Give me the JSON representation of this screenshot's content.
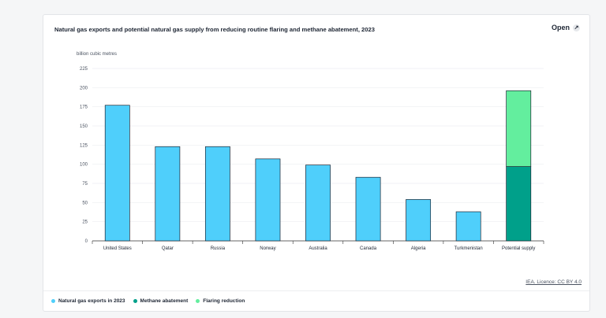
{
  "header": {
    "title": "Natural gas exports and potential natural gas supply from reducing routine flaring and methane abatement, 2023",
    "open_label": "Open",
    "open_icon": "expand-icon"
  },
  "footer": {
    "licence": "IEA. Licence: CC BY 4.0"
  },
  "chart_data": {
    "type": "bar",
    "stacked": true,
    "ylabel": "billion cubic metres",
    "ylim": [
      0,
      225
    ],
    "yticks": [
      0,
      25,
      50,
      75,
      100,
      125,
      150,
      175,
      200,
      225
    ],
    "grid": true,
    "legend_position": "bottom-left",
    "categories": [
      "United States",
      "Qatar",
      "Russia",
      "Norway",
      "Australia",
      "Canada",
      "Algeria",
      "Turkmenistan",
      "Potential supply"
    ],
    "series": [
      {
        "name": "Natural gas exports in 2023",
        "color": "#4fcffb",
        "values": [
          177,
          123,
          123,
          107,
          99,
          83,
          54,
          38,
          null
        ]
      },
      {
        "name": "Methane abatement",
        "color": "#00a08a",
        "values": [
          null,
          null,
          null,
          null,
          null,
          null,
          null,
          null,
          97
        ]
      },
      {
        "name": "Flaring reduction",
        "color": "#63ee9e",
        "values": [
          null,
          null,
          null,
          null,
          null,
          null,
          null,
          null,
          99
        ]
      }
    ]
  }
}
